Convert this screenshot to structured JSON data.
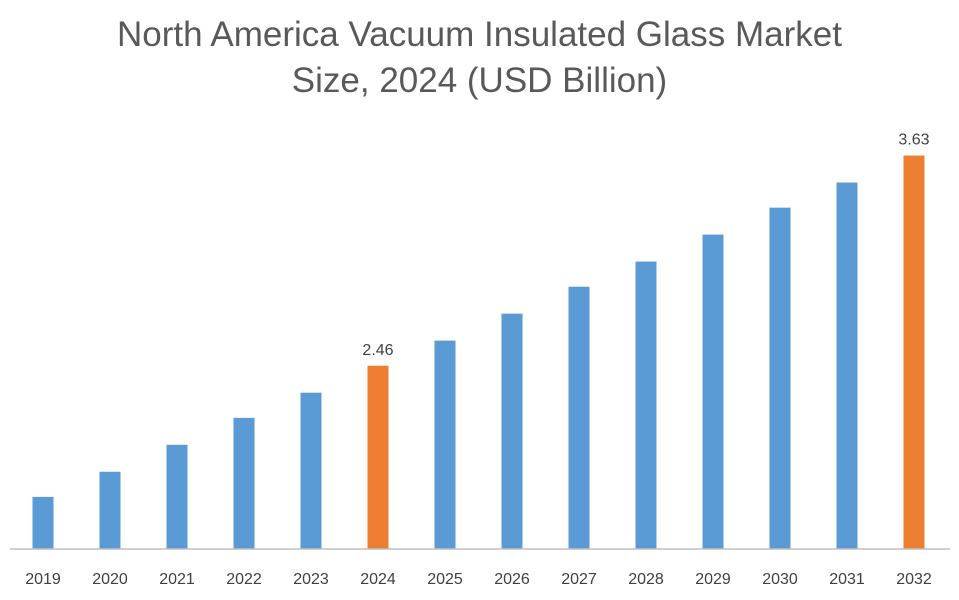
{
  "chart_data": {
    "type": "bar",
    "title_line1": "North America Vacuum Insulated Glass Market",
    "title_line2": "Size, 2024 (USD Billion)",
    "xlabel": "",
    "ylabel": "",
    "categories": [
      "2019",
      "2020",
      "2021",
      "2022",
      "2023",
      "2024",
      "2025",
      "2026",
      "2027",
      "2028",
      "2029",
      "2030",
      "2031",
      "2032"
    ],
    "values": [
      1.73,
      1.87,
      2.02,
      2.17,
      2.31,
      2.46,
      2.6,
      2.75,
      2.9,
      3.04,
      3.19,
      3.34,
      3.48,
      3.63
    ],
    "data_labels": {
      "2024": "2.46",
      "2032": "3.63"
    },
    "highlight_categories": [
      "2024",
      "2032"
    ],
    "ylim": [
      1.44,
      3.75
    ],
    "grid": false,
    "legend": "none",
    "colors": {
      "default": "#5B9BD5",
      "highlight": "#ED7D31",
      "axis": "#BFBFBF"
    }
  }
}
